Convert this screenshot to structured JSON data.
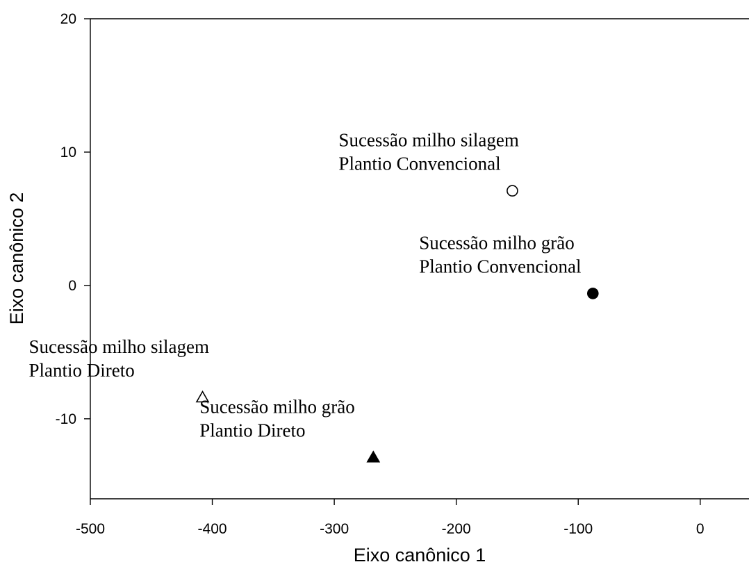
{
  "chart_data": {
    "type": "scatter",
    "title": "",
    "xlabel": "Eixo canônico 1",
    "ylabel": "Eixo canônico 2",
    "xlim": [
      -500,
      40
    ],
    "ylim": [
      -16,
      20
    ],
    "xticks": [
      -500,
      -400,
      -300,
      -200,
      -100,
      0
    ],
    "yticks": [
      -10,
      0,
      10,
      20
    ],
    "grid": false,
    "points": [
      {
        "x": -154,
        "y": 7.1,
        "marker": "circle-open",
        "label_lines": [
          "Sucessão milho silagem",
          "Plantio Convencional"
        ],
        "label_pos": "above-left"
      },
      {
        "x": -88,
        "y": -0.6,
        "marker": "circle-filled",
        "label_lines": [
          "Sucessão milho grão",
          "Plantio Convencional"
        ],
        "label_pos": "above-left"
      },
      {
        "x": -408,
        "y": -8.4,
        "marker": "triangle-open",
        "label_lines": [
          "Sucessão milho silagem",
          "Plantio Direto"
        ],
        "label_pos": "above-left"
      },
      {
        "x": -268,
        "y": -12.9,
        "marker": "triangle-filled",
        "label_lines": [
          "Sucessão milho grão",
          "Plantio Direto"
        ],
        "label_pos": "above-left"
      }
    ]
  }
}
